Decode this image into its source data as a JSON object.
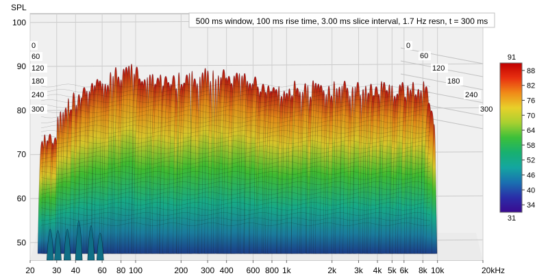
{
  "chart_data": {
    "type": "waterfall",
    "title": "500 ms window, 100 ms rise time, 3.00 ms slice interval, 1.7 Hz resn, t = 300 ms",
    "ylabel": "SPL",
    "xunit": "kHz",
    "yticks": [
      100,
      90,
      80,
      70,
      60,
      50
    ],
    "ylim": [
      46,
      102
    ],
    "xlim_hz": [
      20,
      20000
    ],
    "x_scale": "log",
    "xticks": [
      {
        "hz": 20,
        "label": "20"
      },
      {
        "hz": 30,
        "label": "30"
      },
      {
        "hz": 40,
        "label": "40"
      },
      {
        "hz": 60,
        "label": "60"
      },
      {
        "hz": 80,
        "label": "80"
      },
      {
        "hz": 100,
        "label": "100"
      },
      {
        "hz": 200,
        "label": "200"
      },
      {
        "hz": 300,
        "label": "300"
      },
      {
        "hz": 400,
        "label": "400"
      },
      {
        "hz": 600,
        "label": "600"
      },
      {
        "hz": 800,
        "label": "800"
      },
      {
        "hz": 1000,
        "label": "1k"
      },
      {
        "hz": 2000,
        "label": "2k"
      },
      {
        "hz": 3000,
        "label": "3k"
      },
      {
        "hz": 4000,
        "label": "4k"
      },
      {
        "hz": 5000,
        "label": "5k"
      },
      {
        "hz": 6000,
        "label": "6k"
      },
      {
        "hz": 8000,
        "label": "8k"
      },
      {
        "hz": 10000,
        "label": "10k"
      },
      {
        "hz": 20000,
        "label": "20kHz"
      }
    ],
    "time_ticks_ms": [
      "0",
      "60",
      "120",
      "180",
      "240",
      "300"
    ],
    "colorbar": {
      "min_label": "31",
      "max_label": "91",
      "ticks": [
        "88",
        "82",
        "76",
        "70",
        "64",
        "58",
        "52",
        "46",
        "40",
        "34"
      ]
    },
    "peak_levels_db": [
      {
        "hz": 30,
        "spl": 81
      },
      {
        "hz": 40,
        "spl": 85
      },
      {
        "hz": 60,
        "spl": 88
      },
      {
        "hz": 90,
        "spl": 92
      },
      {
        "hz": 150,
        "spl": 88
      },
      {
        "hz": 300,
        "spl": 90
      },
      {
        "hz": 1000,
        "spl": 87
      },
      {
        "hz": 3000,
        "spl": 87
      },
      {
        "hz": 6000,
        "spl": 87
      }
    ],
    "grid": true,
    "legend_position": "right"
  }
}
